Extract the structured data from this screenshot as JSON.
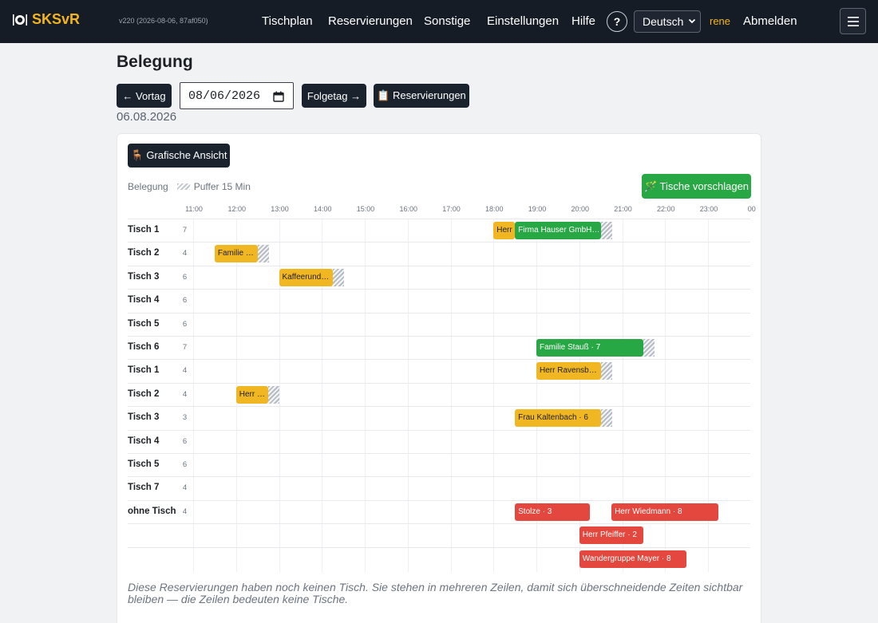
{
  "nav": {
    "brand": "SKSvR",
    "version": "v220 (2026-08-06, 87af050)",
    "links": [
      "Tischplan",
      "Reservierungen",
      "Sonstige",
      "Einstellungen",
      "Hilfe"
    ],
    "help": "?",
    "language": "Deutsch",
    "user": "rene",
    "logout": "Abmelden"
  },
  "page": {
    "title": "Belegung",
    "prev_day": "← Vortag",
    "date_value": "08/06/2026",
    "next_day": "Folgetag →",
    "reservations_button": "📋 Reservierungen",
    "date_label": "06.08.2026"
  },
  "card": {
    "graphic_view_button": "🪑 Grafische Ansicht",
    "suggest_button": "🪄 Tische vorschlagen",
    "legend_occupancy": "Belegung",
    "legend_buffer": "Puffer 15 Min",
    "note": "Diese Reservierungen haben noch keinen Tisch. Sie stehen in mehreren Zeilen, damit sich überschneidende Zeiten sichtbar bleiben — die Zeilen bedeuten keine Tische."
  },
  "timeline": {
    "hours": [
      "11:00",
      "12:00",
      "13:00",
      "14:00",
      "15:00",
      "16:00",
      "17:00",
      "18:00",
      "19:00",
      "20:00",
      "21:00",
      "22:00",
      "23:00",
      "00"
    ],
    "rows": [
      {
        "name": "Tisch 1",
        "cap": "7"
      },
      {
        "name": "Tisch 2",
        "cap": "4"
      },
      {
        "name": "Tisch 3",
        "cap": "6"
      },
      {
        "name": "Tisch 4",
        "cap": "6"
      },
      {
        "name": "Tisch 5",
        "cap": "6"
      },
      {
        "name": "Tisch 6",
        "cap": "7"
      },
      {
        "name": "Tisch 1",
        "cap": "4"
      },
      {
        "name": "Tisch 2",
        "cap": "4"
      },
      {
        "name": "Tisch 3",
        "cap": "3"
      },
      {
        "name": "Tisch 4",
        "cap": "6"
      },
      {
        "name": "Tisch 5",
        "cap": "6"
      },
      {
        "name": "Tisch 7",
        "cap": "4"
      },
      {
        "name": "ohne Tisch",
        "cap": "4"
      },
      {
        "name": "",
        "cap": ""
      },
      {
        "name": "",
        "cap": ""
      }
    ],
    "reservations": [
      {
        "row": 0,
        "start": "18:00",
        "end": "18:30",
        "label": "Herr",
        "color": "yellow",
        "buffer": false
      },
      {
        "row": 0,
        "start": "18:30",
        "end": "20:30",
        "label": "Firma Hauser GmbH…",
        "color": "green",
        "buffer": true
      },
      {
        "row": 1,
        "start": "11:30",
        "end": "12:30",
        "label": "Familie …",
        "color": "yellow",
        "buffer": true
      },
      {
        "row": 2,
        "start": "13:00",
        "end": "14:15",
        "label": "Kaffeerund…",
        "color": "yellow",
        "buffer": true
      },
      {
        "row": 5,
        "start": "19:00",
        "end": "21:30",
        "label": "Familie Stauß · 7",
        "color": "green",
        "buffer": true
      },
      {
        "row": 6,
        "start": "19:00",
        "end": "20:30",
        "label": "Herr Ravensb…",
        "color": "yellow",
        "buffer": true
      },
      {
        "row": 7,
        "start": "12:00",
        "end": "12:45",
        "label": "Herr …",
        "color": "yellow",
        "buffer": true
      },
      {
        "row": 8,
        "start": "18:30",
        "end": "20:30",
        "label": "Frau Kaltenbach · 6",
        "color": "yellow",
        "buffer": true
      },
      {
        "row": 12,
        "start": "18:30",
        "end": "20:15",
        "label": "Stolze · 3",
        "color": "red",
        "buffer": false
      },
      {
        "row": 12,
        "start": "20:45",
        "end": "23:15",
        "label": "Herr Wiedmann · 8",
        "color": "red",
        "buffer": false
      },
      {
        "row": 13,
        "start": "20:00",
        "end": "21:30",
        "label": "Herr Pfeiffer · 2",
        "color": "red",
        "buffer": false
      },
      {
        "row": 14,
        "start": "20:00",
        "end": "22:30",
        "label": "Wandergruppe Mayer · 8",
        "color": "red",
        "buffer": false
      }
    ]
  },
  "colors": {
    "navbar": "#161c26",
    "brand": "#f3b51d",
    "suggest": "#28a745",
    "reservation_yellow": "#f1b722",
    "reservation_green": "#28a745",
    "reservation_red": "#e3473e"
  },
  "icons": [
    "plate-icon",
    "calendar-icon",
    "clipboard-icon",
    "chair-icon",
    "magic-wand-icon",
    "chevron-down-icon",
    "menu-icon"
  ]
}
